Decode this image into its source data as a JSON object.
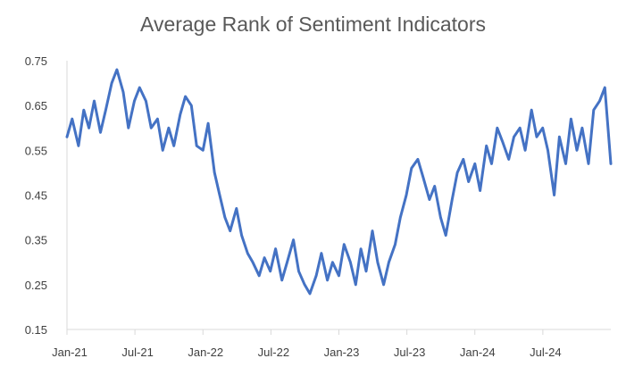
{
  "chart_data": {
    "type": "line",
    "title": "Average Rank of Sentiment Indicators",
    "xlabel": "",
    "ylabel": "",
    "ylim": [
      0.15,
      0.75
    ],
    "y_ticks": [
      "0.15",
      "0.25",
      "0.35",
      "0.45",
      "0.55",
      "0.65",
      "0.75"
    ],
    "x_ticks": [
      "Jan-21",
      "Jul-21",
      "Jan-22",
      "Jul-22",
      "Jan-23",
      "Jul-23",
      "Jan-24",
      "Jul-24"
    ],
    "xlim": [
      "2021-01-01",
      "2024-12-31"
    ],
    "grid": false,
    "legend": "none",
    "line_color": "#4472C4",
    "series": [
      {
        "x": [
          "2021-01-01",
          "2021-01-15",
          "2021-02-01",
          "2021-02-15",
          "2021-03-01",
          "2021-03-15",
          "2021-04-01",
          "2021-04-15",
          "2021-05-01",
          "2021-05-15",
          "2021-06-01",
          "2021-06-15",
          "2021-07-01",
          "2021-07-15",
          "2021-08-01",
          "2021-08-15",
          "2021-09-01",
          "2021-09-15",
          "2021-10-01",
          "2021-10-15",
          "2021-11-01",
          "2021-11-15",
          "2021-12-01",
          "2021-12-15",
          "2022-01-01",
          "2022-01-15",
          "2022-02-01",
          "2022-02-15",
          "2022-03-01",
          "2022-03-15",
          "2022-04-01",
          "2022-04-15",
          "2022-05-01",
          "2022-05-15",
          "2022-06-01",
          "2022-06-15",
          "2022-07-01",
          "2022-07-15",
          "2022-08-01",
          "2022-08-15",
          "2022-09-01",
          "2022-09-15",
          "2022-10-01",
          "2022-10-15",
          "2022-11-01",
          "2022-11-15",
          "2022-12-01",
          "2022-12-15",
          "2023-01-01",
          "2023-01-15",
          "2023-02-01",
          "2023-02-15",
          "2023-03-01",
          "2023-03-15",
          "2023-04-01",
          "2023-04-15",
          "2023-05-01",
          "2023-05-15",
          "2023-06-01",
          "2023-06-15",
          "2023-07-01",
          "2023-07-15",
          "2023-08-01",
          "2023-08-15",
          "2023-09-01",
          "2023-09-15",
          "2023-10-01",
          "2023-10-15",
          "2023-11-01",
          "2023-11-15",
          "2023-12-01",
          "2023-12-15",
          "2024-01-01",
          "2024-01-15",
          "2024-02-01",
          "2024-02-15",
          "2024-03-01",
          "2024-03-15",
          "2024-04-01",
          "2024-04-15",
          "2024-05-01",
          "2024-05-15",
          "2024-06-01",
          "2024-06-15",
          "2024-07-01",
          "2024-07-15",
          "2024-08-01",
          "2024-08-15",
          "2024-09-01",
          "2024-09-15",
          "2024-10-01",
          "2024-10-15",
          "2024-11-01",
          "2024-11-15",
          "2024-12-01",
          "2024-12-15",
          "2024-12-31"
        ],
        "values": [
          0.58,
          0.62,
          0.56,
          0.64,
          0.6,
          0.66,
          0.59,
          0.64,
          0.7,
          0.73,
          0.68,
          0.6,
          0.66,
          0.69,
          0.66,
          0.6,
          0.62,
          0.55,
          0.6,
          0.56,
          0.63,
          0.67,
          0.65,
          0.56,
          0.55,
          0.61,
          0.5,
          0.45,
          0.4,
          0.37,
          0.42,
          0.36,
          0.32,
          0.3,
          0.27,
          0.31,
          0.28,
          0.33,
          0.26,
          0.3,
          0.35,
          0.28,
          0.25,
          0.23,
          0.27,
          0.32,
          0.26,
          0.3,
          0.27,
          0.34,
          0.3,
          0.25,
          0.33,
          0.28,
          0.37,
          0.3,
          0.25,
          0.3,
          0.34,
          0.4,
          0.45,
          0.51,
          0.53,
          0.49,
          0.44,
          0.47,
          0.4,
          0.36,
          0.44,
          0.5,
          0.53,
          0.48,
          0.52,
          0.46,
          0.56,
          0.52,
          0.6,
          0.57,
          0.53,
          0.58,
          0.6,
          0.55,
          0.64,
          0.58,
          0.6,
          0.55,
          0.45,
          0.58,
          0.52,
          0.62,
          0.55,
          0.6,
          0.52,
          0.64,
          0.66,
          0.69,
          0.52
        ]
      }
    ]
  }
}
